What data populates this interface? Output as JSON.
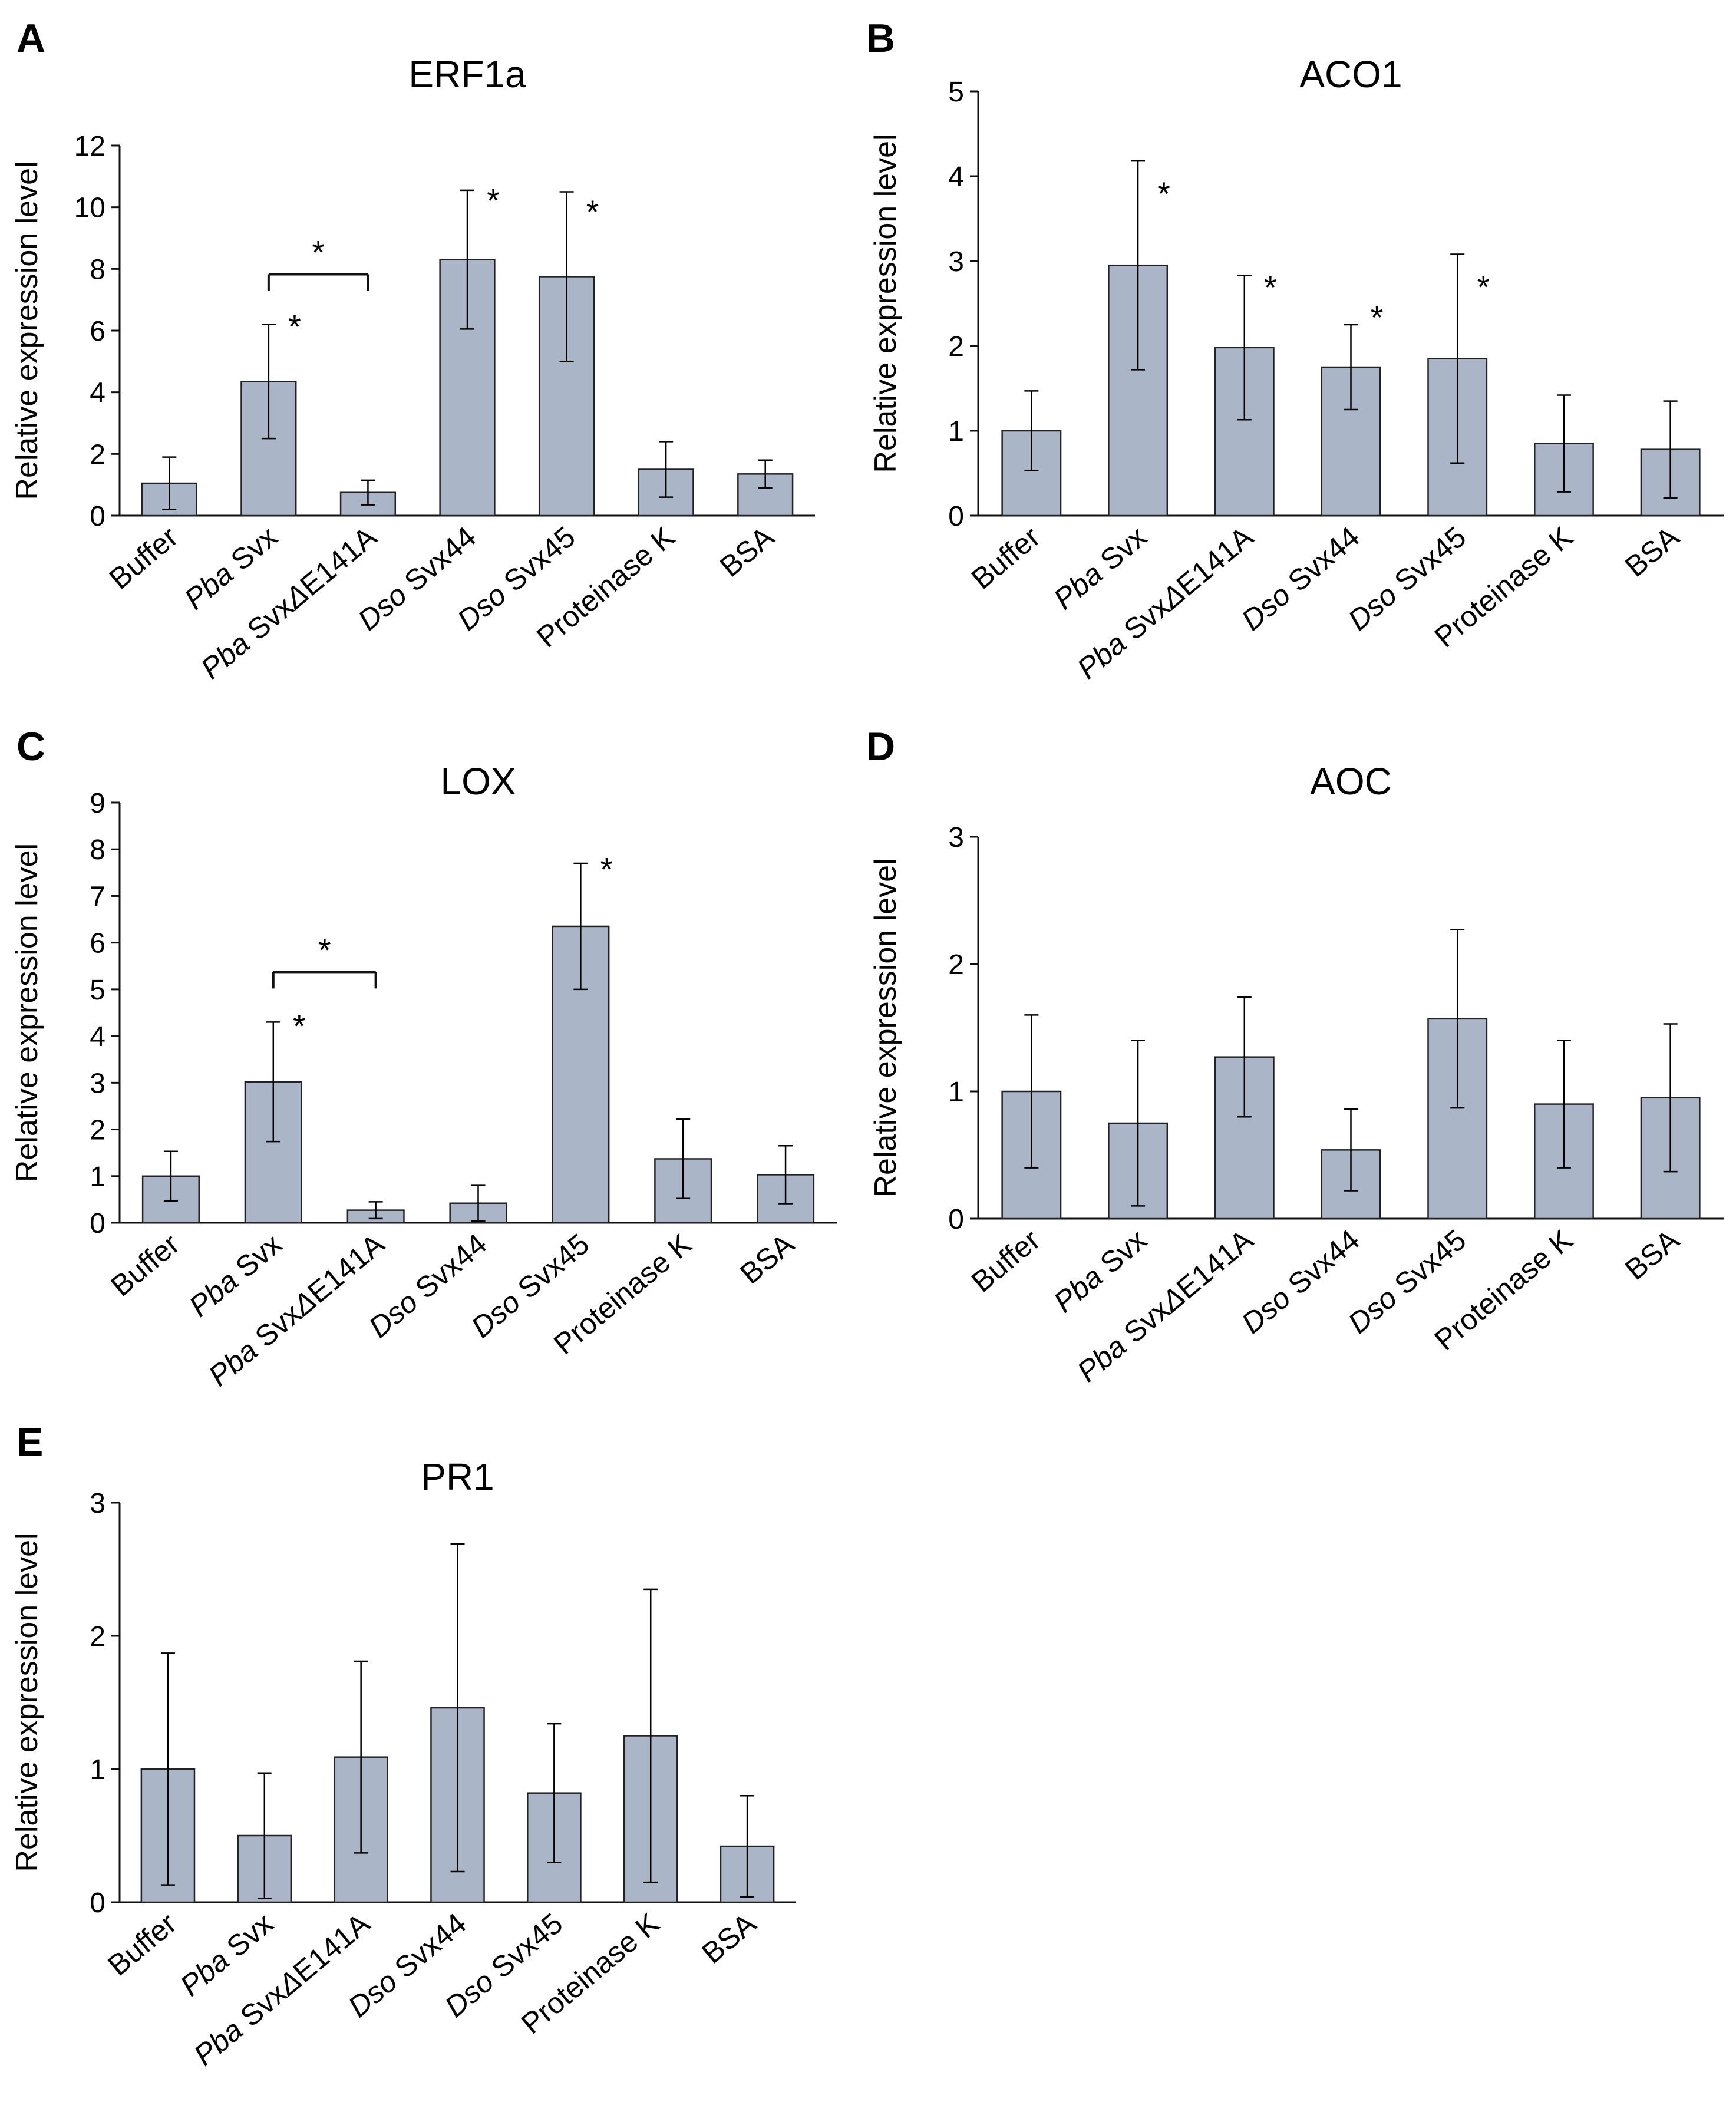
{
  "figure": {
    "categories": [
      {
        "parts": [
          {
            "t": "Buffer",
            "i": false
          }
        ]
      },
      {
        "parts": [
          {
            "t": "Pba",
            "i": true
          },
          {
            "t": " Svx",
            "i": false
          }
        ]
      },
      {
        "parts": [
          {
            "t": "Pba",
            "i": true
          },
          {
            "t": " Svx",
            "i": false
          },
          {
            "t": "Δ",
            "i": true
          },
          {
            "t": "E141A",
            "i": false
          }
        ]
      },
      {
        "parts": [
          {
            "t": "Dso",
            "i": true
          },
          {
            "t": " Svx44",
            "i": false
          }
        ]
      },
      {
        "parts": [
          {
            "t": "Dso",
            "i": true
          },
          {
            "t": " Svx45",
            "i": false
          }
        ]
      },
      {
        "parts": [
          {
            "t": "Proteinase K",
            "i": false
          }
        ]
      },
      {
        "parts": [
          {
            "t": "BSA",
            "i": false
          }
        ]
      }
    ],
    "bar_color": "#aab6c8",
    "bar_edge_color": "#222222",
    "axis_color": "#111111"
  },
  "chart_data": [
    {
      "panel": "A",
      "type": "bar",
      "title": "ERF1a",
      "ylabel": "Relative expression level",
      "ylim": [
        0,
        12
      ],
      "yticks": [
        0,
        2,
        4,
        6,
        8,
        10,
        12
      ],
      "values": [
        1.05,
        4.35,
        0.75,
        8.3,
        7.75,
        1.5,
        1.35
      ],
      "errors": [
        0.85,
        1.85,
        0.4,
        2.25,
        2.75,
        0.9,
        0.45
      ],
      "significant": [
        false,
        true,
        false,
        true,
        true,
        false,
        false
      ],
      "bracket": {
        "from": 1,
        "to": 2,
        "label": "*"
      }
    },
    {
      "panel": "B",
      "type": "bar",
      "title": "ACO1",
      "ylabel": "Relative expression level",
      "ylim": [
        0,
        5
      ],
      "yticks": [
        0,
        1,
        2,
        3,
        4,
        5
      ],
      "values": [
        1.0,
        2.95,
        1.98,
        1.75,
        1.85,
        0.85,
        0.78
      ],
      "errors": [
        0.47,
        1.23,
        0.85,
        0.5,
        1.23,
        0.57,
        0.57
      ],
      "significant": [
        false,
        true,
        true,
        true,
        true,
        false,
        false
      ]
    },
    {
      "panel": "C",
      "type": "bar",
      "title": "LOX",
      "ylabel": "Relative expression level",
      "ylim": [
        0,
        9
      ],
      "yticks": [
        0,
        1,
        2,
        3,
        4,
        5,
        6,
        7,
        8,
        9
      ],
      "values": [
        1.0,
        3.02,
        0.27,
        0.42,
        6.35,
        1.37,
        1.03
      ],
      "errors": [
        0.53,
        1.28,
        0.18,
        0.38,
        1.35,
        0.85,
        0.62
      ],
      "significant": [
        false,
        true,
        false,
        false,
        true,
        false,
        false
      ],
      "bracket": {
        "from": 1,
        "to": 2,
        "label": "*"
      }
    },
    {
      "panel": "D",
      "type": "bar",
      "title": "AOC",
      "ylabel": "Relative expression level",
      "ylim": [
        0,
        3
      ],
      "yticks": [
        0,
        1,
        2,
        3
      ],
      "values": [
        1.0,
        0.75,
        1.27,
        0.54,
        1.57,
        0.9,
        0.95
      ],
      "errors": [
        0.6,
        0.65,
        0.47,
        0.32,
        0.7,
        0.5,
        0.58
      ],
      "significant": [
        false,
        false,
        false,
        false,
        false,
        false,
        false
      ]
    },
    {
      "panel": "E",
      "type": "bar",
      "title": "PR1",
      "ylabel": "Relative expression level",
      "ylim": [
        0,
        3
      ],
      "yticks": [
        0,
        1,
        2,
        3
      ],
      "values": [
        1.0,
        0.5,
        1.09,
        1.46,
        0.82,
        1.25,
        0.42
      ],
      "errors": [
        0.87,
        0.47,
        0.72,
        1.23,
        0.52,
        1.1,
        0.38
      ],
      "significant": [
        false,
        false,
        false,
        false,
        false,
        false,
        false
      ]
    }
  ]
}
